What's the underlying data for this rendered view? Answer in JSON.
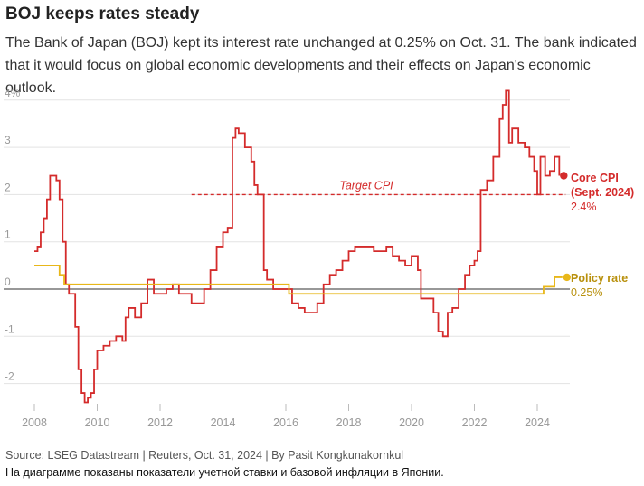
{
  "header": {
    "title": "BOJ keeps rates steady",
    "subtitle": "The Bank of Japan (BOJ) kept its interest rate unchanged at 0.25% on Oct. 31. The bank indicated that it would focus on global economic developments and their effects on Japan's economic outlook."
  },
  "footer": {
    "source": "Source: LSEG Datastream | Reuters, Oct. 31, 2024 | By Pasit Kongkunakornkul",
    "note": "На диаграмме показаны показатели учетной ставки и базовой инфляции в Японии."
  },
  "colors": {
    "core_cpi": "#d42b2b",
    "policy_rate": "#e8b71a",
    "zero_line": "#777777",
    "grid": "#e3e3e3",
    "axis_text": "#999999"
  },
  "chart_data": {
    "type": "line",
    "title": "BOJ keeps rates steady",
    "xlim": [
      2007.7,
      2025.0
    ],
    "ylim": [
      -2.5,
      4.3
    ],
    "yticks": [
      -2,
      -1,
      0,
      1,
      2,
      3,
      4
    ],
    "ytick_labels": [
      "-2",
      "-1",
      "0",
      "1",
      "2",
      "3",
      "4%"
    ],
    "xticks": [
      2008,
      2010,
      2012,
      2014,
      2016,
      2018,
      2020,
      2022,
      2024
    ],
    "xtick_labels": [
      "2008",
      "2010",
      "2012",
      "2014",
      "2016",
      "2018",
      "2020",
      "2022",
      "2024"
    ],
    "grid": true,
    "series": [
      {
        "name": "Core CPI",
        "label_line1": "Core CPI",
        "label_line2": "(Sept. 2024)",
        "last_value_label": "2.4%",
        "color": "#d42b2b",
        "points": [
          [
            2008.0,
            0.8
          ],
          [
            2008.1,
            0.9
          ],
          [
            2008.2,
            1.2
          ],
          [
            2008.3,
            1.5
          ],
          [
            2008.4,
            1.9
          ],
          [
            2008.5,
            2.4
          ],
          [
            2008.6,
            2.4
          ],
          [
            2008.7,
            2.3
          ],
          [
            2008.8,
            1.9
          ],
          [
            2008.9,
            1.0
          ],
          [
            2009.0,
            0.1
          ],
          [
            2009.1,
            -0.1
          ],
          [
            2009.2,
            -0.1
          ],
          [
            2009.3,
            -0.8
          ],
          [
            2009.4,
            -1.7
          ],
          [
            2009.5,
            -2.2
          ],
          [
            2009.6,
            -2.4
          ],
          [
            2009.7,
            -2.3
          ],
          [
            2009.8,
            -2.2
          ],
          [
            2009.9,
            -1.7
          ],
          [
            2010.0,
            -1.3
          ],
          [
            2010.2,
            -1.2
          ],
          [
            2010.4,
            -1.1
          ],
          [
            2010.6,
            -1.0
          ],
          [
            2010.8,
            -1.1
          ],
          [
            2010.9,
            -0.6
          ],
          [
            2011.0,
            -0.4
          ],
          [
            2011.2,
            -0.6
          ],
          [
            2011.4,
            -0.3
          ],
          [
            2011.6,
            0.2
          ],
          [
            2011.8,
            -0.1
          ],
          [
            2012.0,
            -0.1
          ],
          [
            2012.2,
            0.0
          ],
          [
            2012.4,
            0.1
          ],
          [
            2012.6,
            -0.1
          ],
          [
            2012.8,
            -0.1
          ],
          [
            2013.0,
            -0.3
          ],
          [
            2013.2,
            -0.3
          ],
          [
            2013.4,
            0.0
          ],
          [
            2013.6,
            0.4
          ],
          [
            2013.8,
            0.9
          ],
          [
            2014.0,
            1.2
          ],
          [
            2014.15,
            1.3
          ],
          [
            2014.3,
            3.2
          ],
          [
            2014.4,
            3.4
          ],
          [
            2014.5,
            3.3
          ],
          [
            2014.7,
            3.0
          ],
          [
            2014.9,
            2.7
          ],
          [
            2015.0,
            2.2
          ],
          [
            2015.1,
            2.0
          ],
          [
            2015.3,
            0.4
          ],
          [
            2015.4,
            0.2
          ],
          [
            2015.6,
            0.0
          ],
          [
            2015.8,
            0.0
          ],
          [
            2016.0,
            0.0
          ],
          [
            2016.2,
            -0.3
          ],
          [
            2016.4,
            -0.4
          ],
          [
            2016.6,
            -0.5
          ],
          [
            2016.8,
            -0.5
          ],
          [
            2017.0,
            -0.3
          ],
          [
            2017.2,
            0.1
          ],
          [
            2017.4,
            0.3
          ],
          [
            2017.6,
            0.4
          ],
          [
            2017.8,
            0.6
          ],
          [
            2018.0,
            0.8
          ],
          [
            2018.2,
            0.9
          ],
          [
            2018.4,
            0.9
          ],
          [
            2018.6,
            0.9
          ],
          [
            2018.8,
            0.8
          ],
          [
            2019.0,
            0.8
          ],
          [
            2019.2,
            0.9
          ],
          [
            2019.4,
            0.7
          ],
          [
            2019.6,
            0.6
          ],
          [
            2019.8,
            0.5
          ],
          [
            2020.0,
            0.7
          ],
          [
            2020.2,
            0.4
          ],
          [
            2020.3,
            -0.2
          ],
          [
            2020.5,
            -0.2
          ],
          [
            2020.7,
            -0.5
          ],
          [
            2020.85,
            -0.9
          ],
          [
            2021.0,
            -1.0
          ],
          [
            2021.15,
            -0.5
          ],
          [
            2021.3,
            -0.4
          ],
          [
            2021.5,
            0.0
          ],
          [
            2021.7,
            0.3
          ],
          [
            2021.85,
            0.5
          ],
          [
            2022.0,
            0.6
          ],
          [
            2022.1,
            0.8
          ],
          [
            2022.2,
            2.1
          ],
          [
            2022.4,
            2.3
          ],
          [
            2022.6,
            2.8
          ],
          [
            2022.8,
            3.6
          ],
          [
            2022.9,
            3.9
          ],
          [
            2023.0,
            4.2
          ],
          [
            2023.1,
            3.1
          ],
          [
            2023.2,
            3.4
          ],
          [
            2023.4,
            3.1
          ],
          [
            2023.6,
            3.0
          ],
          [
            2023.75,
            2.8
          ],
          [
            2023.9,
            2.5
          ],
          [
            2024.0,
            2.0
          ],
          [
            2024.1,
            2.8
          ],
          [
            2024.25,
            2.4
          ],
          [
            2024.4,
            2.5
          ],
          [
            2024.55,
            2.8
          ],
          [
            2024.7,
            2.4
          ]
        ]
      },
      {
        "name": "Policy rate",
        "label_line1": "Policy rate",
        "last_value_label": "0.25%",
        "color": "#e8b71a",
        "points": [
          [
            2008.0,
            0.5
          ],
          [
            2008.8,
            0.5
          ],
          [
            2008.8,
            0.3
          ],
          [
            2008.95,
            0.3
          ],
          [
            2008.95,
            0.1
          ],
          [
            2016.1,
            0.1
          ],
          [
            2016.1,
            -0.1
          ],
          [
            2024.2,
            -0.1
          ],
          [
            2024.2,
            0.05
          ],
          [
            2024.55,
            0.05
          ],
          [
            2024.55,
            0.25
          ],
          [
            2024.8,
            0.25
          ]
        ]
      }
    ],
    "annotations": [
      {
        "type": "reference_line",
        "label": "Target CPI",
        "value": 2.0,
        "x_start": 2013.0,
        "x_end": 2024.9
      }
    ]
  }
}
